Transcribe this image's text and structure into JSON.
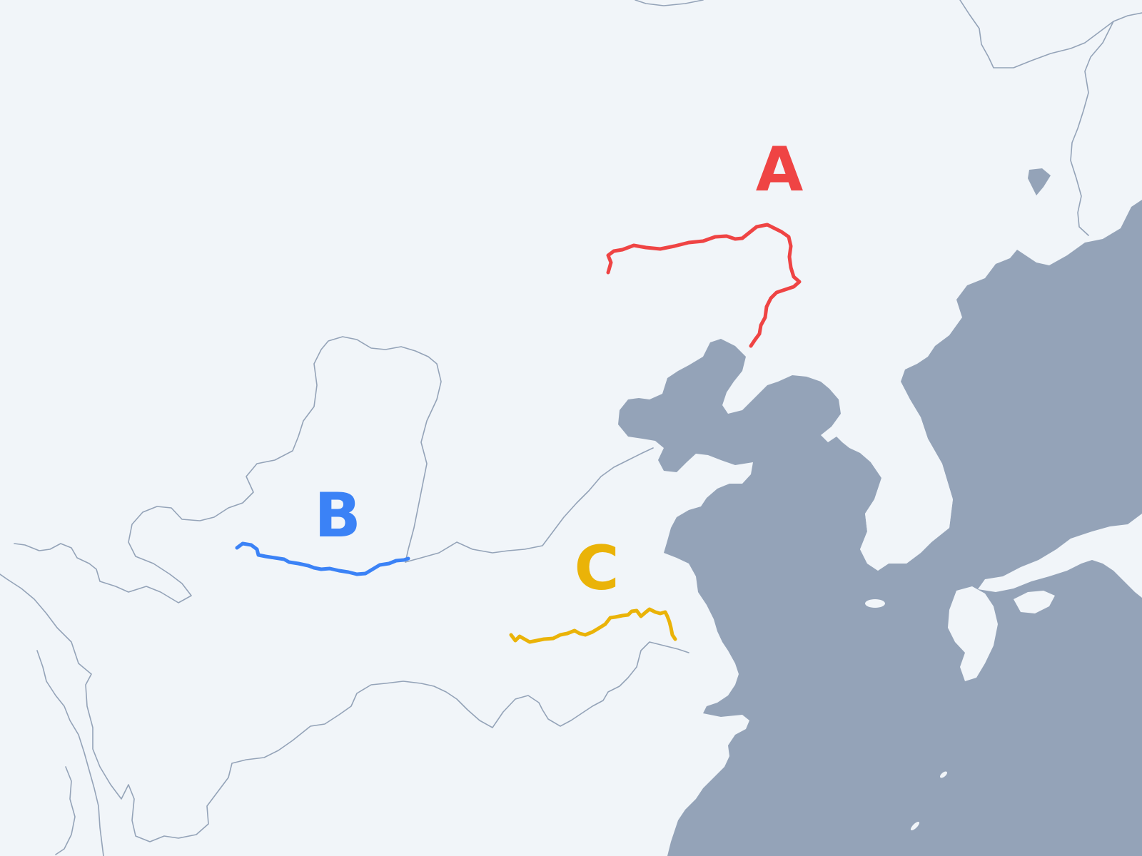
{
  "map": {
    "colors": {
      "land": "#f1f5f9",
      "water": "#94a3b8",
      "context_rivers": "#94a3b8"
    },
    "highlighted_rivers": [
      {
        "label": "A",
        "color": "#ef4444"
      },
      {
        "label": "B",
        "color": "#3b82f6"
      },
      {
        "label": "C",
        "color": "#eab308"
      }
    ]
  }
}
